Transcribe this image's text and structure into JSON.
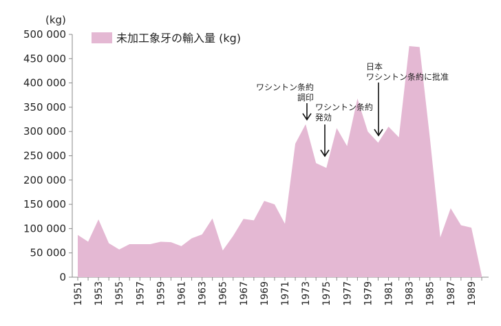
{
  "chart_data": {
    "type": "area",
    "unit_label": "(kg)",
    "ylim": [
      0,
      500000
    ],
    "y_ticks": [
      "0",
      "50 000",
      "100 000",
      "150 000",
      "200 000",
      "250 000",
      "300 000",
      "350 000",
      "400 000",
      "450 000",
      "500 000"
    ],
    "x_tick_labels": [
      "1951",
      "1953",
      "1955",
      "1957",
      "1959",
      "1961",
      "1963",
      "1965",
      "1967",
      "1969",
      "1971",
      "1973",
      "1975",
      "1977",
      "1979",
      "1981",
      "1983",
      "1985",
      "1987",
      "1989"
    ],
    "grid": false,
    "legend_position": "top-left",
    "color": "#e4b8d3",
    "series": [
      {
        "name": "未加工象牙の輸入量 (kg)",
        "x": [
          1951,
          1952,
          1953,
          1954,
          1955,
          1956,
          1957,
          1958,
          1959,
          1960,
          1961,
          1962,
          1963,
          1964,
          1965,
          1966,
          1967,
          1968,
          1969,
          1970,
          1971,
          1972,
          1973,
          1974,
          1975,
          1976,
          1977,
          1978,
          1979,
          1980,
          1981,
          1982,
          1983,
          1984,
          1985,
          1986,
          1987,
          1988,
          1989,
          1990
        ],
        "values": [
          87000,
          73000,
          119000,
          70000,
          57000,
          68000,
          68000,
          68000,
          73000,
          72000,
          64000,
          80000,
          88000,
          121000,
          55000,
          85000,
          120000,
          117000,
          157000,
          150000,
          110000,
          275000,
          315000,
          235000,
          225000,
          307000,
          270000,
          368000,
          300000,
          277000,
          310000,
          288000,
          476000,
          474000,
          286000,
          82000,
          142000,
          107000,
          102000,
          3000
        ]
      }
    ],
    "annotations": [
      {
        "lines": [
          "ワシントン条約",
          "調印"
        ],
        "year": 1973
      },
      {
        "lines": [
          "ワシントン条約",
          "発効"
        ],
        "year": 1975
      },
      {
        "lines": [
          "日本",
          "ワシントン条約に批准"
        ],
        "year": 1980
      }
    ]
  }
}
